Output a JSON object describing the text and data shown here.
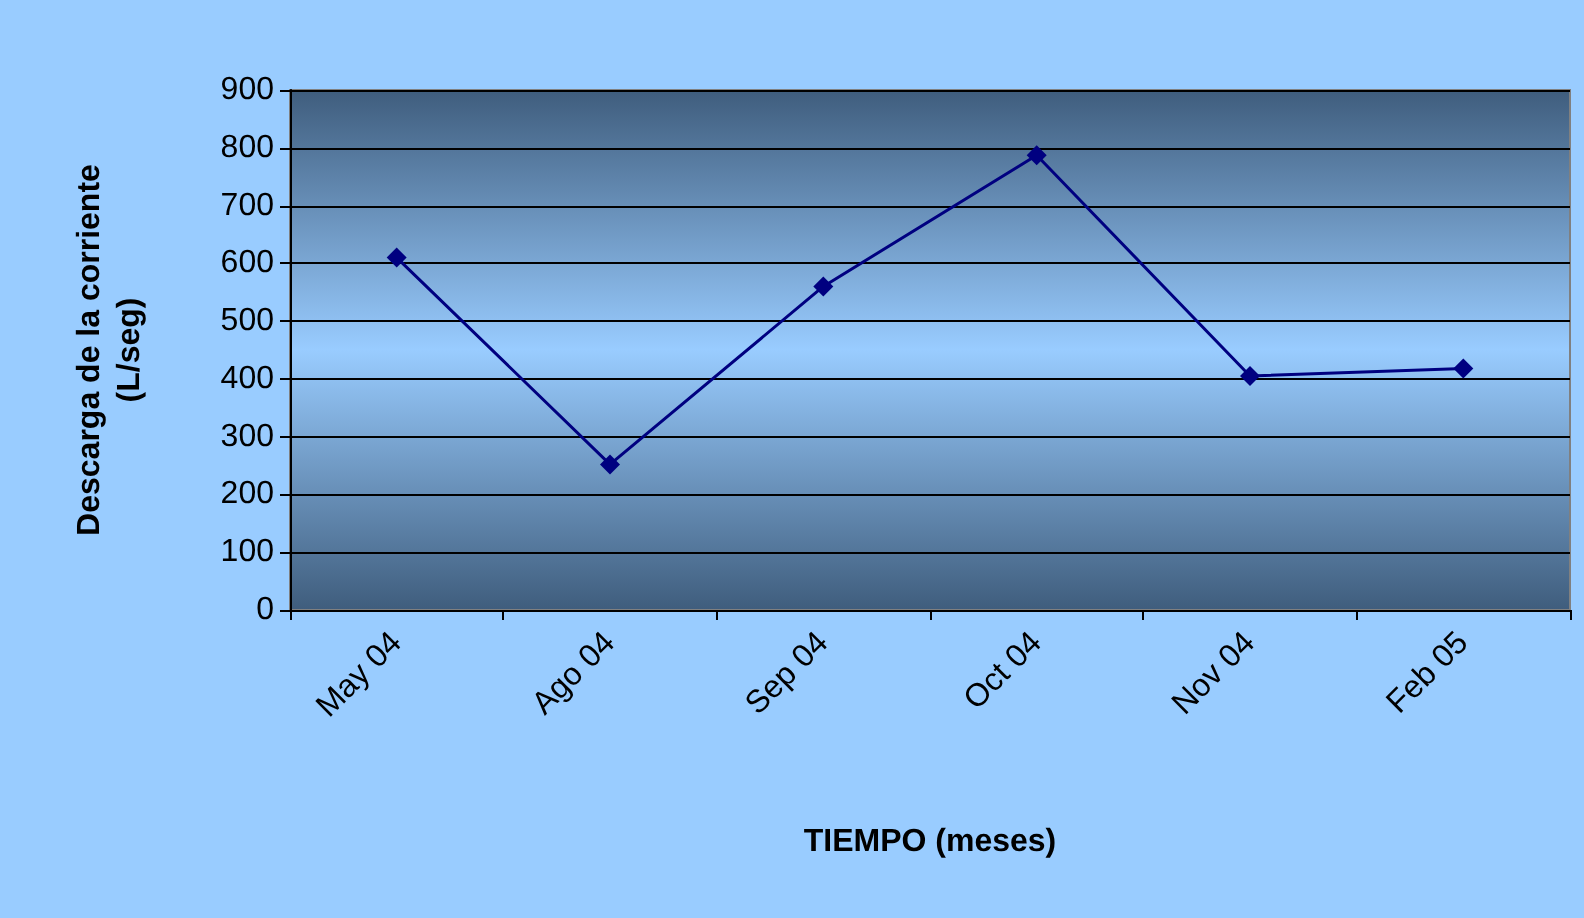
{
  "chart_data": {
    "type": "line",
    "xlabel": "TIEMPO (meses)",
    "ylabel": "Descarga de la corriente (L/seg)",
    "categories": [
      "May 04",
      "Ago 04",
      "Sep 04",
      "Oct 04",
      "Nov 04",
      "Feb 05"
    ],
    "series": [
      {
        "color": "#000080",
        "values": [
          610,
          252,
          560,
          787,
          405,
          418
        ]
      }
    ],
    "ylim": [
      0,
      900
    ],
    "yticks": [
      0,
      100,
      200,
      300,
      400,
      500,
      600,
      700,
      800,
      900
    ],
    "grid": "y",
    "marker": "diamond",
    "line_style": "solid"
  }
}
